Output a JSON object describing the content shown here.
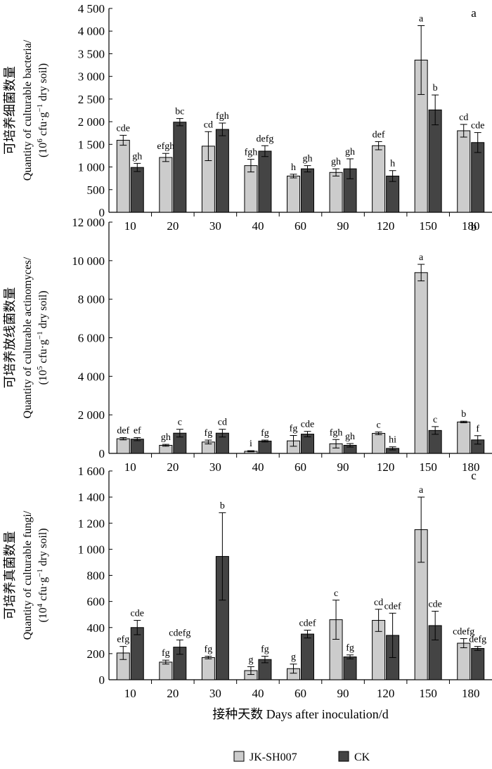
{
  "chart_data": [
    {
      "type": "bar",
      "panel": "a",
      "ylabel_cn": "可培养细菌数量",
      "ylabel_en": "Quantity of culturable bacteria/",
      "ylabel_unit": "(10^6 cfu·g^-1 dry soil)",
      "ylim": [
        0,
        4500
      ],
      "yticks": [
        0,
        500,
        1000,
        1500,
        2000,
        2500,
        3000,
        3500,
        4000,
        4500
      ],
      "ytick_labels": [
        "0",
        "500",
        "1 000",
        "1 500",
        "2 000",
        "2 500",
        "3 000",
        "3 500",
        "4 000",
        "4 500"
      ],
      "categories": [
        "10",
        "20",
        "30",
        "40",
        "60",
        "90",
        "120",
        "150",
        "180"
      ],
      "series": [
        {
          "name": "JK-SH007",
          "values": [
            1590,
            1210,
            1460,
            1030,
            800,
            880,
            1470,
            3360,
            1800
          ],
          "errors": [
            110,
            90,
            320,
            140,
            40,
            80,
            90,
            760,
            140
          ],
          "labels": [
            "cde",
            "efgh",
            "cd",
            "fgh",
            "h",
            "gh",
            "def",
            "a",
            "cd"
          ]
        },
        {
          "name": "CK",
          "values": [
            990,
            1990,
            1830,
            1350,
            960,
            960,
            800,
            2260,
            1540
          ],
          "errors": [
            90,
            80,
            140,
            120,
            70,
            220,
            120,
            330,
            220
          ],
          "labels": [
            "gh",
            "bc",
            "fgh",
            "defg",
            "gh",
            "gh",
            "h",
            "b",
            "cde"
          ]
        }
      ]
    },
    {
      "type": "bar",
      "panel": "b",
      "ylabel_cn": "可培养放线菌数量",
      "ylabel_en": "Quantity of culturable actinomyces/",
      "ylabel_unit": "(10^5 cfu·g^-1 dry soil)",
      "ylim": [
        0,
        12000
      ],
      "yticks": [
        0,
        2000,
        4000,
        6000,
        8000,
        10000,
        12000
      ],
      "ytick_labels": [
        "0",
        "2 000",
        "4 000",
        "6 000",
        "8 000",
        "10 000",
        "12 000"
      ],
      "categories": [
        "10",
        "20",
        "30",
        "40",
        "60",
        "90",
        "120",
        "150",
        "180"
      ],
      "series": [
        {
          "name": "JK-SH007",
          "values": [
            760,
            420,
            590,
            110,
            650,
            500,
            1040,
            9380,
            1630
          ],
          "errors": [
            60,
            50,
            100,
            30,
            280,
            220,
            70,
            430,
            40
          ],
          "labels": [
            "def",
            "gh",
            "fg",
            "i",
            "fg",
            "fgh",
            "c",
            "a",
            "b"
          ]
        },
        {
          "name": "CK",
          "values": [
            740,
            1050,
            1050,
            640,
            1000,
            420,
            260,
            1190,
            700
          ],
          "errors": [
            80,
            200,
            200,
            50,
            140,
            90,
            80,
            200,
            220
          ],
          "labels": [
            "ef",
            "c",
            "cd",
            "fg",
            "cde",
            "gh",
            "hi",
            "c",
            "f"
          ]
        }
      ]
    },
    {
      "type": "bar",
      "panel": "c",
      "ylabel_cn": "可培养真菌数量",
      "ylabel_en": "Quantity of culturable fungi/",
      "ylabel_unit": "(10^4 cfu·g^-1 dry soil)",
      "xlabel": "接种天数 Days after inoculation/d",
      "ylim": [
        0,
        1600
      ],
      "yticks": [
        0,
        200,
        400,
        600,
        800,
        1000,
        1200,
        1400,
        1600
      ],
      "ytick_labels": [
        "0",
        "200",
        "400",
        "600",
        "800",
        "1 000",
        "1 200",
        "1 400",
        "1 600"
      ],
      "categories": [
        "10",
        "20",
        "30",
        "40",
        "60",
        "90",
        "120",
        "150",
        "180"
      ],
      "series": [
        {
          "name": "JK-SH007",
          "values": [
            205,
            135,
            170,
            70,
            85,
            460,
            455,
            1150,
            280
          ],
          "errors": [
            50,
            15,
            10,
            30,
            35,
            150,
            85,
            250,
            35
          ],
          "labels": [
            "efg",
            "fg",
            "fg",
            "g",
            "g",
            "c",
            "cd",
            "a",
            "cdefg"
          ]
        },
        {
          "name": "CK",
          "values": [
            400,
            250,
            945,
            155,
            350,
            175,
            340,
            415,
            240
          ],
          "errors": [
            55,
            55,
            335,
            25,
            30,
            15,
            170,
            110,
            15
          ],
          "labels": [
            "cde",
            "cdefg",
            "b",
            "fg",
            "cdef",
            "fg",
            "cdef",
            "cde",
            "defg"
          ]
        }
      ]
    }
  ],
  "legend": {
    "items": [
      {
        "name": "JK-SH007",
        "color": "#cccccc"
      },
      {
        "name": "CK",
        "color": "#444444"
      }
    ]
  },
  "colors": {
    "jk": "#cccccc",
    "ck": "#444444",
    "axis": "#000000"
  }
}
